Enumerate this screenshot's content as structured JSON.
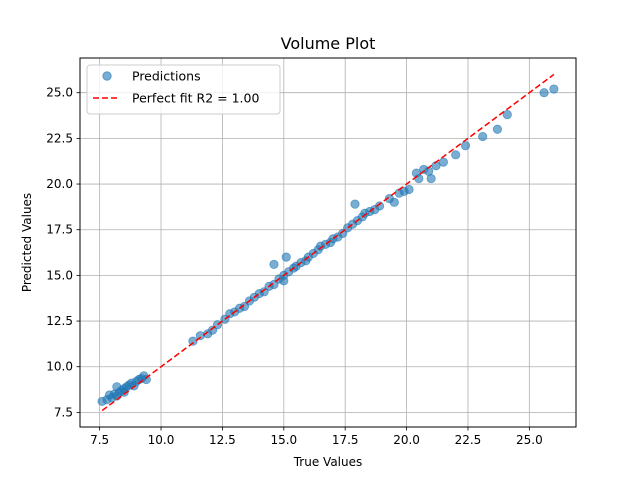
{
  "chart_data": {
    "type": "scatter",
    "title": "Volume Plot",
    "xlabel": "True Values",
    "ylabel": "Predicted Values",
    "xlim": [
      6.7,
      26.9
    ],
    "ylim": [
      6.7,
      26.9
    ],
    "xticks": [
      7.5,
      10.0,
      12.5,
      15.0,
      17.5,
      20.0,
      22.5,
      25.0
    ],
    "yticks": [
      7.5,
      10.0,
      12.5,
      15.0,
      17.5,
      20.0,
      22.5,
      25.0
    ],
    "x_tick_labels": [
      "7.5",
      "10.0",
      "12.5",
      "15.0",
      "17.5",
      "20.0",
      "22.5",
      "25.0"
    ],
    "y_tick_labels": [
      "7.5",
      "10.0",
      "12.5",
      "15.0",
      "17.5",
      "20.0",
      "22.5",
      "25.0"
    ],
    "grid": true,
    "legend_position": "top-left",
    "series": [
      {
        "name": "Predictions",
        "kind": "scatter",
        "color": "#1f77b4",
        "points": [
          [
            7.6,
            8.1
          ],
          [
            7.8,
            8.2
          ],
          [
            7.9,
            8.45
          ],
          [
            8.0,
            8.3
          ],
          [
            8.1,
            8.5
          ],
          [
            8.2,
            8.4
          ],
          [
            8.3,
            8.6
          ],
          [
            8.4,
            8.7
          ],
          [
            8.5,
            8.8
          ],
          [
            8.6,
            8.9
          ],
          [
            8.7,
            9.0
          ],
          [
            8.8,
            9.1
          ],
          [
            8.9,
            8.95
          ],
          [
            9.0,
            9.2
          ],
          [
            9.1,
            9.3
          ],
          [
            9.2,
            9.35
          ],
          [
            9.3,
            9.5
          ],
          [
            9.4,
            9.3
          ],
          [
            8.2,
            8.9
          ],
          [
            8.5,
            8.6
          ],
          [
            11.3,
            11.4
          ],
          [
            11.6,
            11.7
          ],
          [
            11.9,
            11.8
          ],
          [
            12.1,
            12.0
          ],
          [
            12.3,
            12.3
          ],
          [
            12.6,
            12.6
          ],
          [
            12.8,
            12.9
          ],
          [
            13.0,
            13.0
          ],
          [
            13.2,
            13.2
          ],
          [
            13.4,
            13.3
          ],
          [
            13.6,
            13.6
          ],
          [
            13.8,
            13.8
          ],
          [
            14.0,
            14.0
          ],
          [
            14.2,
            14.1
          ],
          [
            14.4,
            14.4
          ],
          [
            14.6,
            14.5
          ],
          [
            14.6,
            15.6
          ],
          [
            14.8,
            14.8
          ],
          [
            15.0,
            15.0
          ],
          [
            15.0,
            14.7
          ],
          [
            15.1,
            16.0
          ],
          [
            15.2,
            15.2
          ],
          [
            15.4,
            15.4
          ],
          [
            15.5,
            15.5
          ],
          [
            15.7,
            15.7
          ],
          [
            15.9,
            15.8
          ],
          [
            16.0,
            16.0
          ],
          [
            16.2,
            16.2
          ],
          [
            16.4,
            16.4
          ],
          [
            16.5,
            16.6
          ],
          [
            16.7,
            16.7
          ],
          [
            16.9,
            16.8
          ],
          [
            17.0,
            17.0
          ],
          [
            17.2,
            17.1
          ],
          [
            17.4,
            17.3
          ],
          [
            17.6,
            17.6
          ],
          [
            17.8,
            17.8
          ],
          [
            17.9,
            18.9
          ],
          [
            18.0,
            18.0
          ],
          [
            18.2,
            18.2
          ],
          [
            18.3,
            18.4
          ],
          [
            18.5,
            18.5
          ],
          [
            18.7,
            18.6
          ],
          [
            18.9,
            18.8
          ],
          [
            19.3,
            19.2
          ],
          [
            19.5,
            19.0
          ],
          [
            19.7,
            19.5
          ],
          [
            19.9,
            19.6
          ],
          [
            20.1,
            19.7
          ],
          [
            20.4,
            20.6
          ],
          [
            20.5,
            20.3
          ],
          [
            20.7,
            20.8
          ],
          [
            20.9,
            20.7
          ],
          [
            21.0,
            20.3
          ],
          [
            21.2,
            21.0
          ],
          [
            21.5,
            21.2
          ],
          [
            22.0,
            21.6
          ],
          [
            22.4,
            22.1
          ],
          [
            23.1,
            22.6
          ],
          [
            23.7,
            23.0
          ],
          [
            24.1,
            23.8
          ],
          [
            25.6,
            25.0
          ],
          [
            26.0,
            25.2
          ]
        ]
      },
      {
        "name": "Perfect fit R2 = 1.00",
        "kind": "line",
        "color": "#ff0000",
        "dash": "dashed",
        "x": [
          7.6,
          26.0
        ],
        "y": [
          7.6,
          26.0
        ]
      }
    ]
  }
}
